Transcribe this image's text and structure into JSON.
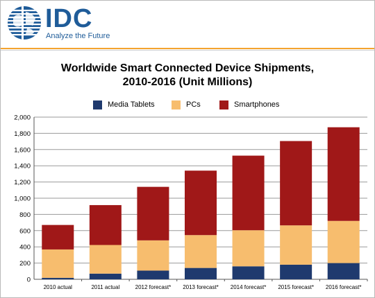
{
  "header": {
    "brand": "IDC",
    "tagline": "Analyze the Future",
    "logo_icon": "globe-icon"
  },
  "colors": {
    "brand_blue": "#1f5c99",
    "accent_orange": "#f4a32e",
    "series_tablets": "#1f3a6e",
    "series_pcs": "#f7bd6e",
    "series_smartphones": "#a01818"
  },
  "chart_data": {
    "type": "bar",
    "stacked": true,
    "title": "Worldwide Smart Connected Device Shipments,",
    "subtitle": "2010-2016 (Unit Millions)",
    "xlabel": "",
    "ylabel": "",
    "ylim": [
      0,
      2000
    ],
    "yticks": [
      0,
      200,
      400,
      600,
      800,
      1000,
      1200,
      1400,
      1600,
      1800,
      2000
    ],
    "ytick_labels": [
      "0",
      "200",
      "400",
      "600",
      "800",
      "1,000",
      "1,200",
      "1,400",
      "1,600",
      "1,800",
      "2,000"
    ],
    "grid": true,
    "legend_position": "top",
    "categories": [
      "2010 actual",
      "2011 actual",
      "2012 forecast*",
      "2013 forecast*",
      "2014 forecast*",
      "2015 forecast*",
      "2016 forecast*"
    ],
    "series": [
      {
        "name": "Media Tablets",
        "color": "#1f3a6e",
        "values": [
          18,
          70,
          107,
          140,
          160,
          180,
          200
        ]
      },
      {
        "name": "PCs",
        "color": "#f7bd6e",
        "values": [
          350,
          353,
          373,
          405,
          445,
          485,
          520
        ]
      },
      {
        "name": "Smartphones",
        "color": "#a01818",
        "values": [
          302,
          492,
          660,
          795,
          920,
          1040,
          1155
        ]
      }
    ]
  }
}
